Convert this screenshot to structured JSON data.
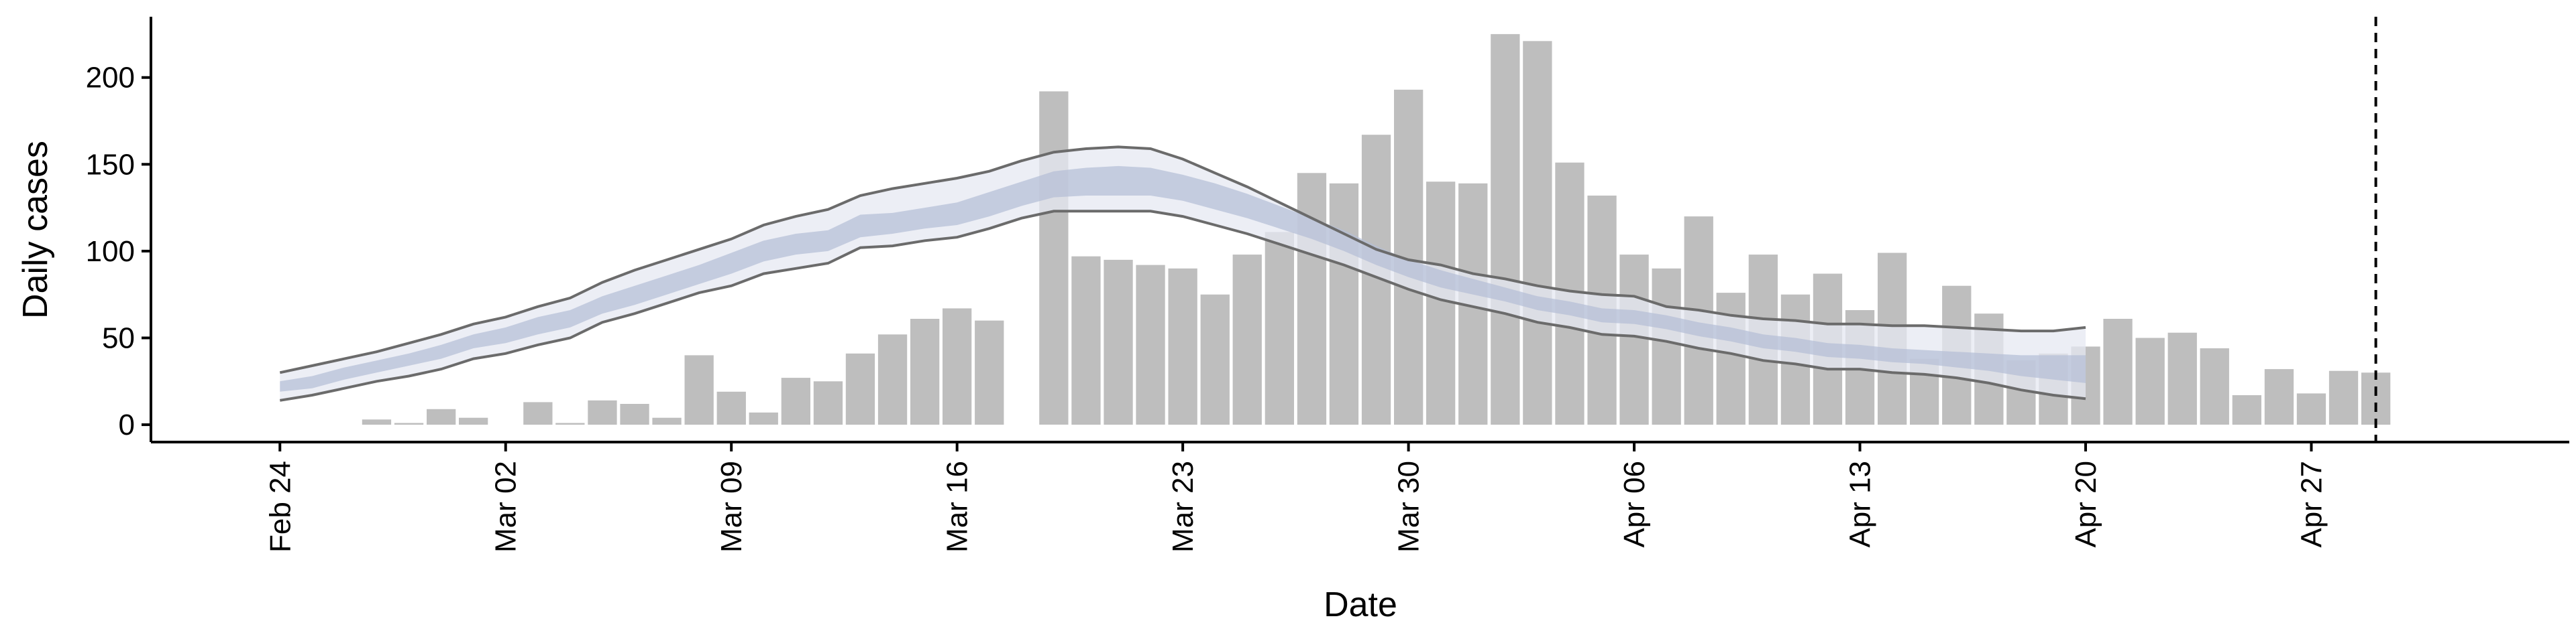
{
  "chart_data": {
    "type": "bar",
    "title": "",
    "xlabel": "Date",
    "ylabel": "Daily cases",
    "ylim": [
      -10,
      235
    ],
    "yticks": [
      0,
      50,
      100,
      150,
      200
    ],
    "x_tick_labels": [
      "Feb 24",
      "Mar 02",
      "Mar 09",
      "Mar 16",
      "Mar 23",
      "Mar 30",
      "Apr 06",
      "Apr 13",
      "Apr 20",
      "Apr 27"
    ],
    "x_tick_dates": [
      "2020-02-24",
      "2020-03-02",
      "2020-03-09",
      "2020-03-16",
      "2020-03-23",
      "2020-03-30",
      "2020-04-06",
      "2020-04-13",
      "2020-04-20",
      "2020-04-27"
    ],
    "x_range": [
      "2020-02-20",
      "2020-05-05"
    ],
    "vline_date": "2020-04-29",
    "colors": {
      "bars": "#bebebe",
      "band_outer": "#e6e8f1",
      "band_inner": "#b3bdd6",
      "bound_lines": "#6b6b6b",
      "axis": "#000000"
    },
    "bars": {
      "dates": [
        "2020-02-27",
        "2020-02-28",
        "2020-02-29",
        "2020-03-01",
        "2020-03-03",
        "2020-03-04",
        "2020-03-05",
        "2020-03-06",
        "2020-03-07",
        "2020-03-08",
        "2020-03-09",
        "2020-03-10",
        "2020-03-11",
        "2020-03-12",
        "2020-03-13",
        "2020-03-14",
        "2020-03-15",
        "2020-03-16",
        "2020-03-17",
        "2020-03-19",
        "2020-03-20",
        "2020-03-21",
        "2020-03-22",
        "2020-03-23",
        "2020-03-24",
        "2020-03-25",
        "2020-03-26",
        "2020-03-27",
        "2020-03-28",
        "2020-03-29",
        "2020-03-30",
        "2020-03-31",
        "2020-04-01",
        "2020-04-02",
        "2020-04-03",
        "2020-04-04",
        "2020-04-05",
        "2020-04-06",
        "2020-04-07",
        "2020-04-08",
        "2020-04-09",
        "2020-04-10",
        "2020-04-11",
        "2020-04-12",
        "2020-04-13",
        "2020-04-14",
        "2020-04-15",
        "2020-04-16",
        "2020-04-17",
        "2020-04-18",
        "2020-04-19",
        "2020-04-20",
        "2020-04-21",
        "2020-04-22",
        "2020-04-23",
        "2020-04-24",
        "2020-04-25",
        "2020-04-26",
        "2020-04-27",
        "2020-04-28",
        "2020-04-29"
      ],
      "values": [
        3,
        1,
        9,
        4,
        13,
        1,
        14,
        12,
        4,
        40,
        19,
        7,
        27,
        25,
        41,
        52,
        61,
        67,
        60,
        192,
        97,
        95,
        92,
        90,
        75,
        98,
        111,
        145,
        139,
        167,
        193,
        140,
        139,
        225,
        221,
        151,
        132,
        98,
        90,
        120,
        76,
        98,
        75,
        87,
        66,
        99,
        38,
        80,
        64,
        37,
        41,
        45,
        61,
        50,
        53,
        44,
        17,
        32,
        18,
        31,
        30
      ]
    },
    "series": [
      {
        "dates": [
          "2020-02-24",
          "2020-02-25",
          "2020-02-26",
          "2020-02-27",
          "2020-02-28",
          "2020-02-29",
          "2020-03-01",
          "2020-03-02",
          "2020-03-03",
          "2020-03-04",
          "2020-03-05",
          "2020-03-06",
          "2020-03-07",
          "2020-03-08",
          "2020-03-09",
          "2020-03-10",
          "2020-03-11",
          "2020-03-12",
          "2020-03-13",
          "2020-03-14",
          "2020-03-15",
          "2020-03-16",
          "2020-03-17",
          "2020-03-18",
          "2020-03-19",
          "2020-03-20",
          "2020-03-21",
          "2020-03-22",
          "2020-03-23",
          "2020-03-24",
          "2020-03-25",
          "2020-03-26",
          "2020-03-27",
          "2020-03-28",
          "2020-03-29",
          "2020-03-30",
          "2020-03-31",
          "2020-04-01",
          "2020-04-02",
          "2020-04-03",
          "2020-04-04",
          "2020-04-05",
          "2020-04-06",
          "2020-04-07",
          "2020-04-08",
          "2020-04-09",
          "2020-04-10",
          "2020-04-11",
          "2020-04-12",
          "2020-04-13",
          "2020-04-14",
          "2020-04-15",
          "2020-04-16",
          "2020-04-17",
          "2020-04-18",
          "2020-04-19",
          "2020-04-20"
        ],
        "lower_outer": [
          14,
          17,
          21,
          25,
          28,
          32,
          38,
          41,
          46,
          50,
          59,
          64,
          70,
          76,
          80,
          87,
          90,
          93,
          102,
          103,
          106,
          108,
          113,
          119,
          123,
          123,
          123,
          123,
          120,
          115,
          110,
          104,
          98,
          92,
          85,
          78,
          72,
          68,
          64,
          59,
          56,
          52,
          51,
          48,
          44,
          41,
          37,
          35,
          32,
          32,
          30,
          29,
          27,
          24,
          20,
          17,
          15
        ],
        "lower_inner": [
          19,
          21,
          26,
          30,
          34,
          38,
          44,
          47,
          52,
          56,
          64,
          69,
          75,
          81,
          87,
          94,
          98,
          100,
          108,
          110,
          113,
          115,
          120,
          126,
          131,
          132,
          132,
          132,
          129,
          124,
          119,
          113,
          107,
          100,
          92,
          85,
          79,
          75,
          71,
          66,
          63,
          59,
          58,
          55,
          51,
          48,
          44,
          42,
          39,
          38,
          36,
          35,
          33,
          31,
          28,
          26,
          24
        ],
        "center": [
          22,
          24,
          29,
          33,
          37,
          42,
          48,
          52,
          57,
          61,
          69,
          74,
          80,
          86,
          93,
          100,
          104,
          106,
          115,
          116,
          119,
          122,
          127,
          133,
          139,
          141,
          141,
          140,
          136,
          131,
          126,
          119,
          113,
          105,
          97,
          90,
          84,
          79,
          75,
          70,
          67,
          63,
          62,
          59,
          55,
          52,
          48,
          46,
          43,
          42,
          40,
          39,
          37,
          35,
          33,
          31,
          29
        ],
        "upper_inner": [
          25,
          28,
          33,
          37,
          41,
          46,
          52,
          56,
          62,
          66,
          74,
          80,
          86,
          92,
          99,
          106,
          110,
          112,
          121,
          122,
          125,
          128,
          134,
          140,
          146,
          148,
          149,
          148,
          144,
          139,
          133,
          126,
          119,
          112,
          103,
          95,
          89,
          84,
          79,
          74,
          71,
          67,
          66,
          63,
          59,
          56,
          52,
          50,
          47,
          46,
          44,
          43,
          42,
          41,
          40,
          40,
          40
        ],
        "upper_outer": [
          30,
          34,
          38,
          42,
          47,
          52,
          58,
          62,
          68,
          73,
          82,
          89,
          95,
          101,
          107,
          115,
          120,
          124,
          132,
          136,
          139,
          142,
          146,
          152,
          157,
          159,
          160,
          159,
          153,
          145,
          137,
          128,
          119,
          110,
          101,
          95,
          92,
          87,
          84,
          80,
          77,
          75,
          74,
          68,
          66,
          63,
          61,
          60,
          58,
          58,
          57,
          57,
          56,
          55,
          54,
          54,
          56
        ]
      }
    ]
  }
}
